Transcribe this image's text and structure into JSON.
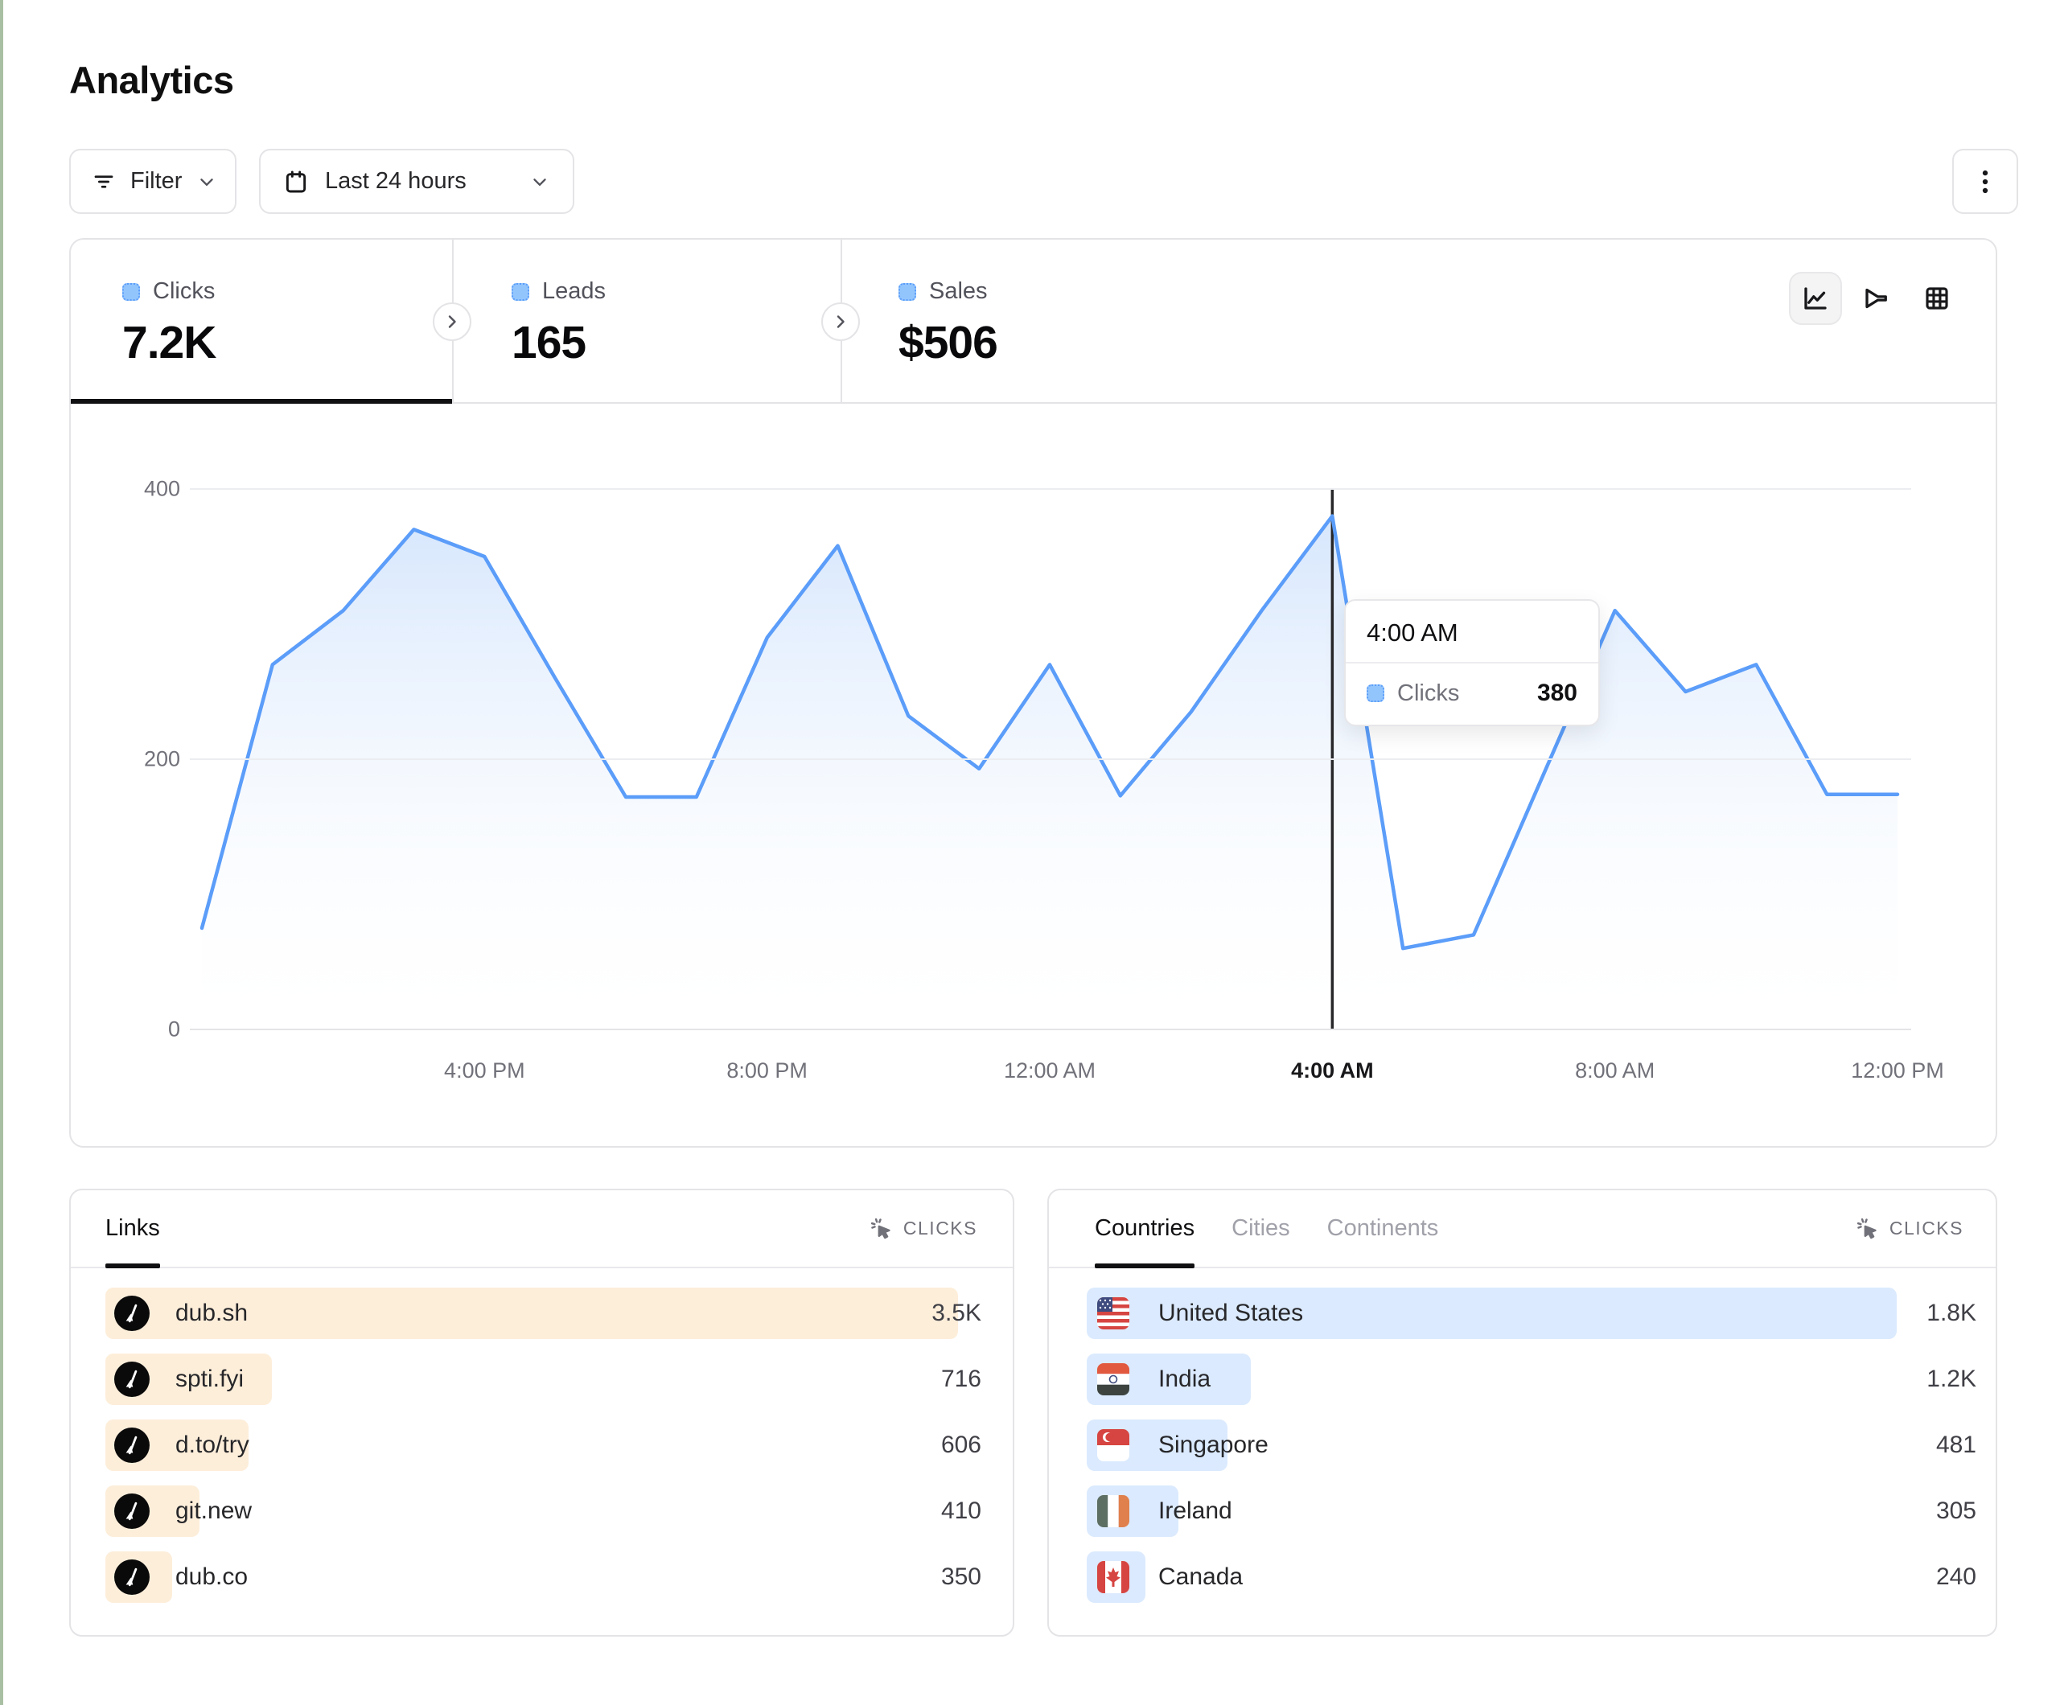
{
  "page": {
    "title": "Analytics"
  },
  "toolbar": {
    "filter_label": "Filter",
    "date_range": "Last 24 hours",
    "kebab_icon": "vertical-dots"
  },
  "stats": {
    "items": [
      {
        "label": "Clicks",
        "value": "7.2K",
        "active": true
      },
      {
        "label": "Leads",
        "value": "165",
        "active": false
      },
      {
        "label": "Sales",
        "value": "$506",
        "active": false
      }
    ]
  },
  "chart_toolbar": {
    "icons": [
      {
        "name": "line-chart",
        "active": true
      },
      {
        "name": "funnel",
        "active": false
      },
      {
        "name": "grid",
        "active": false
      }
    ]
  },
  "chart_data": {
    "type": "area",
    "series": [
      {
        "name": "Clicks",
        "values": [
          75,
          270,
          310,
          370,
          350,
          260,
          172,
          172,
          290,
          358,
          232,
          193,
          270,
          173,
          235,
          310,
          380,
          60,
          70,
          190,
          310,
          250,
          270,
          174,
          174
        ]
      }
    ],
    "x": [
      "12:00 PM",
      "1:00 PM",
      "2:00 PM",
      "3:00 PM",
      "4:00 PM",
      "5:00 PM",
      "6:00 PM",
      "7:00 PM",
      "8:00 PM",
      "9:00 PM",
      "10:00 PM",
      "11:00 PM",
      "12:00 AM",
      "1:00 AM",
      "2:00 AM",
      "3:00 AM",
      "4:00 AM",
      "5:00 AM",
      "6:00 AM",
      "7:00 AM",
      "8:00 AM",
      "9:00 AM",
      "10:00 AM",
      "11:00 AM",
      "12:00 PM"
    ],
    "x_axis_ticks": [
      "4:00 PM",
      "8:00 PM",
      "12:00 AM",
      "4:00 AM",
      "8:00 AM",
      "12:00 PM"
    ],
    "x_tick_indices": [
      4,
      8,
      12,
      16,
      20,
      24
    ],
    "y_ticks": [
      0,
      200,
      400
    ],
    "ylim": [
      0,
      400
    ],
    "grid": "horizontal",
    "legend_position": "none",
    "line_color": "#5b9df9",
    "area_fill_top": "#cfe2fc",
    "area_fill_bottom": "#ffffff",
    "hover": {
      "index": 16,
      "x_label": "4:00 AM",
      "value": 380
    }
  },
  "tooltip": {
    "title": "4:00 AM",
    "series": "Clicks",
    "value": "380"
  },
  "links_panel": {
    "tab_label": "Links",
    "metric_label": "CLICKS",
    "bar_color": "#fdeeda",
    "rows": [
      {
        "label": "dub.sh",
        "value": "3.5K",
        "bar_pct": 100
      },
      {
        "label": "spti.fyi",
        "value": "716",
        "bar_pct": 19.5
      },
      {
        "label": "d.to/try",
        "value": "606",
        "bar_pct": 16.8
      },
      {
        "label": "git.new",
        "value": "410",
        "bar_pct": 11.0
      },
      {
        "label": "dub.co",
        "value": "350",
        "bar_pct": 7.8
      }
    ]
  },
  "geo_panel": {
    "tabs": [
      {
        "label": "Countries",
        "active": true
      },
      {
        "label": "Cities",
        "active": false
      },
      {
        "label": "Continents",
        "active": false
      }
    ],
    "metric_label": "CLICKS",
    "bar_color": "#dbeafe",
    "rows": [
      {
        "label": "United States",
        "flag": "us",
        "value": "1.8K",
        "bar_pct": 100
      },
      {
        "label": "India",
        "flag": "in",
        "value": "1.2K",
        "bar_pct": 20.3
      },
      {
        "label": "Singapore",
        "flag": "sg",
        "value": "481",
        "bar_pct": 17.4
      },
      {
        "label": "Ireland",
        "flag": "ie",
        "value": "305",
        "bar_pct": 11.3
      },
      {
        "label": "Canada",
        "flag": "ca",
        "value": "240",
        "bar_pct": 7.2
      }
    ]
  },
  "colors": {
    "accent_blue": "#5b9df9",
    "legend_square_fill": "#93c5fd",
    "links_bar": "#fdeeda",
    "geo_bar": "#dbeafe",
    "border": "#e4e4e7",
    "muted_text": "#71717a",
    "hover_line": "#27272a",
    "left_edge": "#a9bfa3"
  }
}
